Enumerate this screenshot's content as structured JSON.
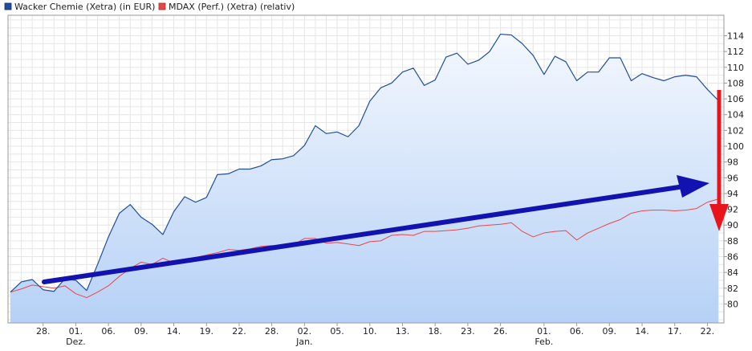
{
  "legend": [
    {
      "label": "Wacker Chemie (Xetra) (in EUR)",
      "color": "#1f4e9a"
    },
    {
      "label": "MDAX (Perf.) (Xetra) (relativ)",
      "color": "#e8474a"
    }
  ],
  "chart_data": {
    "type": "area",
    "grid": true,
    "ylim": [
      77.6,
      116.6
    ],
    "y_ticks": [
      80,
      82,
      84,
      86,
      88,
      90,
      92,
      94,
      96,
      98,
      100,
      102,
      104,
      106,
      108,
      110,
      112,
      114
    ],
    "x_ticks": [
      {
        "label": "28.",
        "idx": 3
      },
      {
        "label": "01.",
        "idx": 6,
        "sub": "Dez."
      },
      {
        "label": "06.",
        "idx": 9
      },
      {
        "label": "09.",
        "idx": 12
      },
      {
        "label": "14.",
        "idx": 15
      },
      {
        "label": "19.",
        "idx": 18
      },
      {
        "label": "22.",
        "idx": 21
      },
      {
        "label": "28.",
        "idx": 24
      },
      {
        "label": "02.",
        "idx": 27,
        "sub": "Jan."
      },
      {
        "label": "05.",
        "idx": 30
      },
      {
        "label": "10.",
        "idx": 33
      },
      {
        "label": "13.",
        "idx": 36
      },
      {
        "label": "18.",
        "idx": 39
      },
      {
        "label": "23.",
        "idx": 42
      },
      {
        "label": "26.",
        "idx": 45
      },
      {
        "label": "01.",
        "idx": 49,
        "sub": "Feb."
      },
      {
        "label": "06.",
        "idx": 52
      },
      {
        "label": "09.",
        "idx": 55
      },
      {
        "label": "14.",
        "idx": 58
      },
      {
        "label": "17.",
        "idx": 61
      },
      {
        "label": "22.",
        "idx": 64
      }
    ],
    "series": [
      {
        "name": "Wacker Chemie (Xetra) (in EUR)",
        "color": "#1f4e9a",
        "values": [
          81.5,
          82.8,
          83.1,
          81.8,
          81.6,
          83.2,
          83.0,
          81.7,
          85.0,
          88.5,
          91.5,
          92.6,
          91.0,
          90.1,
          88.8,
          91.7,
          93.6,
          92.9,
          93.5,
          96.4,
          96.5,
          97.1,
          97.1,
          97.5,
          98.3,
          98.4,
          98.8,
          100.1,
          102.6,
          101.6,
          101.8,
          101.2,
          102.6,
          105.7,
          107.4,
          108.0,
          109.4,
          109.9,
          107.7,
          108.4,
          111.3,
          111.8,
          110.4,
          110.9,
          112.0,
          114.2,
          114.1,
          113.0,
          111.5,
          109.1,
          111.4,
          110.7,
          108.3,
          109.4,
          109.4,
          111.2,
          111.2,
          108.3,
          109.2,
          108.7,
          108.3,
          108.8,
          109.0,
          108.8,
          107.2,
          105.8
        ]
      },
      {
        "name": "MDAX (Perf.) (Xetra) (relativ)",
        "color": "#e8474a",
        "values": [
          81.5,
          81.9,
          82.4,
          82.2,
          82.0,
          82.3,
          81.3,
          80.8,
          81.5,
          82.3,
          83.5,
          84.5,
          85.3,
          85.0,
          85.8,
          85.2,
          85.4,
          85.9,
          86.2,
          86.5,
          86.9,
          86.8,
          87.0,
          87.3,
          87.4,
          87.3,
          87.5,
          88.3,
          88.3,
          87.7,
          87.8,
          87.6,
          87.4,
          87.9,
          88.0,
          88.7,
          88.8,
          88.7,
          89.2,
          89.2,
          89.3,
          89.4,
          89.6,
          89.9,
          90.0,
          90.1,
          90.3,
          89.2,
          88.5,
          89.0,
          89.2,
          89.3,
          88.1,
          89.0,
          89.6,
          90.2,
          90.7,
          91.5,
          91.8,
          91.9,
          91.9,
          91.8,
          91.9,
          92.1,
          92.9,
          93.3
        ]
      }
    ]
  }
}
